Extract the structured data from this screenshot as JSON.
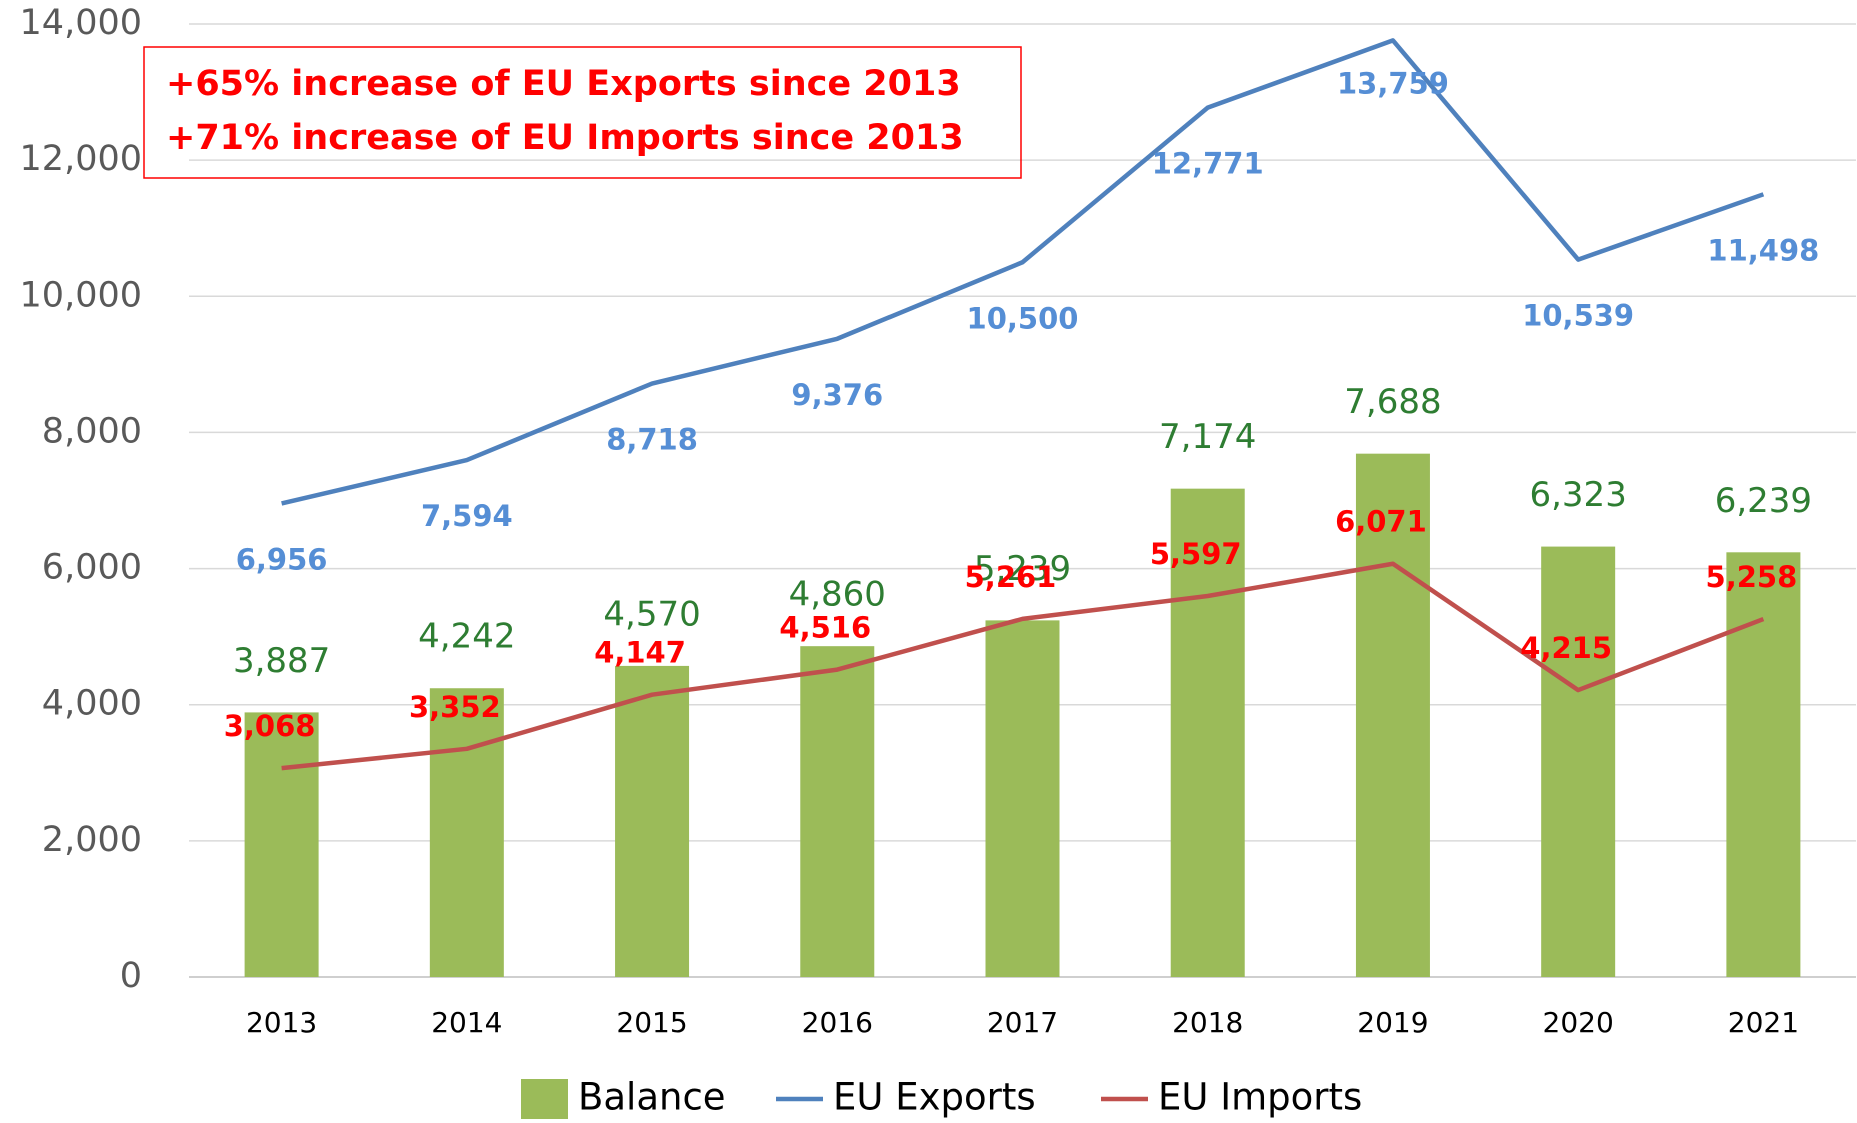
{
  "chart_data": {
    "type": "bar_line",
    "annotations": [
      "+65% increase of EU Exports since 2013",
      "+71% increase of EU Imports since 2013"
    ],
    "categories": [
      "2013",
      "2014",
      "2015",
      "2016",
      "2017",
      "2018",
      "2019",
      "2020",
      "2021"
    ],
    "series": [
      {
        "name": "Balance",
        "type": "bar",
        "color": "#9bbb59",
        "label_color": "#2e7d32",
        "values": [
          3887,
          4242,
          4570,
          4860,
          5239,
          7174,
          7688,
          6323,
          6239
        ],
        "value_labels": [
          "3,887",
          "4,242",
          "4,570",
          "4,860",
          "5,239",
          "7,174",
          "7,688",
          "6,323",
          "6,239"
        ]
      },
      {
        "name": "EU Exports",
        "type": "line",
        "color": "#4f81bd",
        "label_color": "#558ed5",
        "values": [
          6956,
          7594,
          8718,
          9376,
          10500,
          12771,
          13759,
          10539,
          11498
        ],
        "value_labels": [
          "6,956",
          "7,594",
          "8,718",
          "9,376",
          "10,500",
          "12,771",
          "13,759",
          "10,539",
          "11,498"
        ]
      },
      {
        "name": "EU Imports",
        "type": "line",
        "color": "#c0504d",
        "label_color": "#ff0000",
        "values": [
          3068,
          3352,
          4147,
          4516,
          5261,
          5597,
          6071,
          4215,
          5258
        ],
        "value_labels": [
          "3,068",
          "3,352",
          "4,147",
          "4,516",
          "5,261",
          "5,597",
          "6,071",
          "4,215",
          "5,258"
        ]
      }
    ],
    "ylim": [
      0,
      14000
    ],
    "yticks": [
      0,
      {
        "value": 2000,
        "label": "2,000"
      },
      {
        "value": 4000,
        "label": "4,000"
      },
      {
        "value": 6000,
        "label": "6,000"
      },
      {
        "value": 8000,
        "label": "8,000"
      },
      {
        "value": 10000,
        "label": "10,000"
      },
      {
        "value": 12000,
        "label": "12,000"
      },
      {
        "value": 14000,
        "label": "14,000"
      }
    ],
    "grid": true,
    "legend": "bottom"
  }
}
